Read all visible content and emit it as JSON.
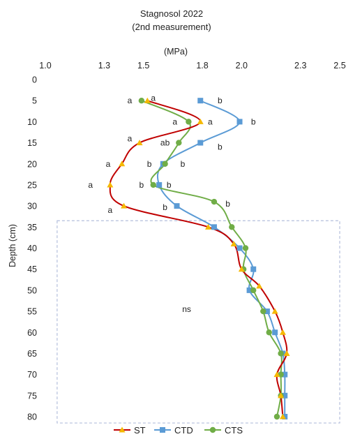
{
  "chart_data": {
    "type": "line",
    "title": "Stagnosol 2022",
    "subtitle": "(2nd measurement)",
    "xlabel": "(MPa)",
    "ylabel": "Depth (cm)",
    "xlim": [
      1.0,
      2.5
    ],
    "ylim": [
      0,
      80
    ],
    "y_reversed": true,
    "x_axis_position": "top",
    "x_ticks": [
      "1.0",
      "1.3",
      "1.5",
      "1.8",
      "2.0",
      "2.3",
      "2.5"
    ],
    "y_ticks": [
      "0",
      "5",
      "10",
      "15",
      "20",
      "25",
      "30",
      "35",
      "40",
      "45",
      "50",
      "55",
      "60",
      "65",
      "70",
      "75",
      "80"
    ],
    "grid": false,
    "legend_position": "bottom",
    "series": [
      {
        "name": "ST",
        "color": "#c00000",
        "marker": "triangle",
        "marker_color": "#f5b800",
        "points": [
          {
            "x": 1.52,
            "y": 5
          },
          {
            "x": 1.79,
            "y": 10
          },
          {
            "x": 1.48,
            "y": 15
          },
          {
            "x": 1.39,
            "y": 20
          },
          {
            "x": 1.33,
            "y": 25
          },
          {
            "x": 1.4,
            "y": 30
          },
          {
            "x": 1.83,
            "y": 35
          },
          {
            "x": 1.96,
            "y": 39
          },
          {
            "x": 2.0,
            "y": 45
          },
          {
            "x": 2.09,
            "y": 49
          },
          {
            "x": 2.17,
            "y": 55
          },
          {
            "x": 2.21,
            "y": 60
          },
          {
            "x": 2.23,
            "y": 65
          },
          {
            "x": 2.18,
            "y": 70
          },
          {
            "x": 2.2,
            "y": 75
          },
          {
            "x": 2.21,
            "y": 80
          }
        ]
      },
      {
        "name": "CTD",
        "color": "#5b9bd5",
        "marker": "square",
        "marker_color": "#5b9bd5",
        "points": [
          {
            "x": 1.79,
            "y": 5
          },
          {
            "x": 1.99,
            "y": 10
          },
          {
            "x": 1.79,
            "y": 15
          },
          {
            "x": 1.6,
            "y": 20
          },
          {
            "x": 1.58,
            "y": 25
          },
          {
            "x": 1.67,
            "y": 30
          },
          {
            "x": 1.86,
            "y": 35
          },
          {
            "x": 1.99,
            "y": 40
          },
          {
            "x": 2.06,
            "y": 45
          },
          {
            "x": 2.04,
            "y": 50
          },
          {
            "x": 2.13,
            "y": 55
          },
          {
            "x": 2.17,
            "y": 60
          },
          {
            "x": 2.21,
            "y": 65
          },
          {
            "x": 2.22,
            "y": 70
          },
          {
            "x": 2.22,
            "y": 75
          },
          {
            "x": 2.22,
            "y": 80
          }
        ]
      },
      {
        "name": "CTS",
        "color": "#70ad47",
        "marker": "circle",
        "marker_color": "#70ad47",
        "points": [
          {
            "x": 1.49,
            "y": 5
          },
          {
            "x": 1.73,
            "y": 10
          },
          {
            "x": 1.68,
            "y": 15
          },
          {
            "x": 1.61,
            "y": 20
          },
          {
            "x": 1.55,
            "y": 25
          },
          {
            "x": 1.86,
            "y": 29
          },
          {
            "x": 1.95,
            "y": 35
          },
          {
            "x": 2.02,
            "y": 40
          },
          {
            "x": 2.01,
            "y": 45
          },
          {
            "x": 2.06,
            "y": 50
          },
          {
            "x": 2.11,
            "y": 55
          },
          {
            "x": 2.14,
            "y": 60
          },
          {
            "x": 2.2,
            "y": 65
          },
          {
            "x": 2.2,
            "y": 70
          },
          {
            "x": 2.2,
            "y": 75
          },
          {
            "x": 2.18,
            "y": 80
          }
        ]
      }
    ],
    "significance_labels": [
      {
        "text": "a",
        "x": 1.43,
        "y": 5
      },
      {
        "text": "a",
        "x": 1.55,
        "y": 4.4
      },
      {
        "text": "b",
        "x": 1.89,
        "y": 5
      },
      {
        "text": "a",
        "x": 1.66,
        "y": 10
      },
      {
        "text": "a",
        "x": 1.84,
        "y": 10
      },
      {
        "text": "b",
        "x": 2.06,
        "y": 10
      },
      {
        "text": "a",
        "x": 1.43,
        "y": 14
      },
      {
        "text": "ab",
        "x": 1.61,
        "y": 15
      },
      {
        "text": "b",
        "x": 1.89,
        "y": 16
      },
      {
        "text": "a",
        "x": 1.32,
        "y": 20
      },
      {
        "text": "b",
        "x": 1.53,
        "y": 20
      },
      {
        "text": "b",
        "x": 1.7,
        "y": 20
      },
      {
        "text": "a",
        "x": 1.23,
        "y": 25
      },
      {
        "text": "b",
        "x": 1.49,
        "y": 25
      },
      {
        "text": "b",
        "x": 1.63,
        "y": 25
      },
      {
        "text": "a",
        "x": 1.33,
        "y": 31
      },
      {
        "text": "b",
        "x": 1.61,
        "y": 30.3
      },
      {
        "text": "b",
        "x": 1.93,
        "y": 29.5
      }
    ],
    "annotations": [
      {
        "text": "ns",
        "x": 1.72,
        "y": 54.5
      }
    ],
    "dashed_box": {
      "x0": 1.06,
      "x1": 2.5,
      "y0": 33.5,
      "y1": 81.5
    }
  }
}
